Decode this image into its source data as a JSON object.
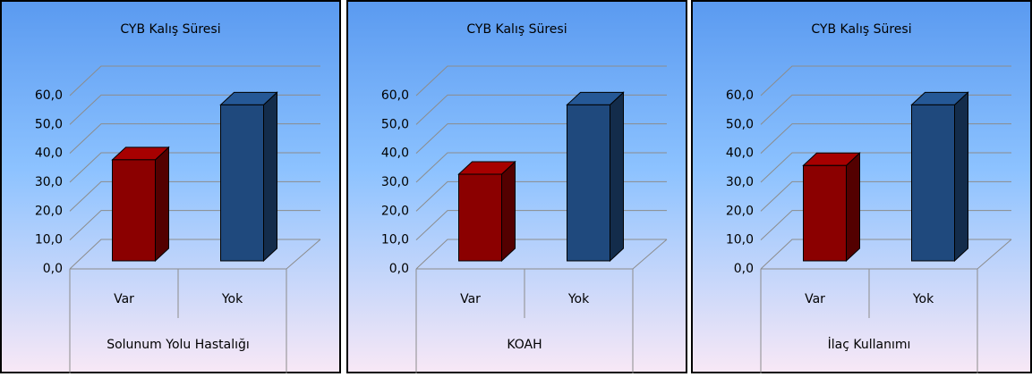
{
  "chart_data": [
    {
      "type": "bar",
      "title": "CYB Kalış Süresi",
      "categories": [
        "Var",
        "Yok"
      ],
      "values": [
        35,
        54
      ],
      "colors": [
        "#8b0000",
        "#1f497d"
      ],
      "xlabel": "Solunum Yolu Hastalığı",
      "ylim": [
        0,
        60
      ],
      "yticks": [
        {
          "value": 0,
          "label": "0,0"
        },
        {
          "value": 10,
          "label": "10,0"
        },
        {
          "value": 20,
          "label": "20,0"
        },
        {
          "value": 30,
          "label": "30,0"
        },
        {
          "value": 40,
          "label": "40,0"
        },
        {
          "value": 50,
          "label": "50,0"
        },
        {
          "value": 60,
          "label": "60,0"
        }
      ],
      "grid": true
    },
    {
      "type": "bar",
      "title": "CYB Kalış Süresi",
      "categories": [
        "Var",
        "Yok"
      ],
      "values": [
        30,
        54
      ],
      "colors": [
        "#8b0000",
        "#1f497d"
      ],
      "xlabel": "KOAH",
      "ylim": [
        0,
        60
      ],
      "yticks": [
        {
          "value": 0,
          "label": "0,0"
        },
        {
          "value": 10,
          "label": "10,0"
        },
        {
          "value": 20,
          "label": "20,0"
        },
        {
          "value": 30,
          "label": "30,0"
        },
        {
          "value": 40,
          "label": "40,0"
        },
        {
          "value": 50,
          "label": "50,0"
        },
        {
          "value": 60,
          "label": "60,0"
        }
      ],
      "grid": true
    },
    {
      "type": "bar",
      "title": "CYB Kalış Süresi",
      "categories": [
        "Var",
        "Yok"
      ],
      "values": [
        33,
        54
      ],
      "colors": [
        "#8b0000",
        "#1f497d"
      ],
      "xlabel": "İlaç Kullanımı",
      "ylim": [
        0,
        60
      ],
      "yticks": [
        {
          "value": 0,
          "label": "0,0"
        },
        {
          "value": 10,
          "label": "10,0"
        },
        {
          "value": 20,
          "label": "20,0"
        },
        {
          "value": 30,
          "label": "30,0"
        },
        {
          "value": 40,
          "label": "40,0"
        },
        {
          "value": 50,
          "label": "50,0"
        },
        {
          "value": 60,
          "label": "60,0"
        }
      ],
      "grid": true
    }
  ]
}
